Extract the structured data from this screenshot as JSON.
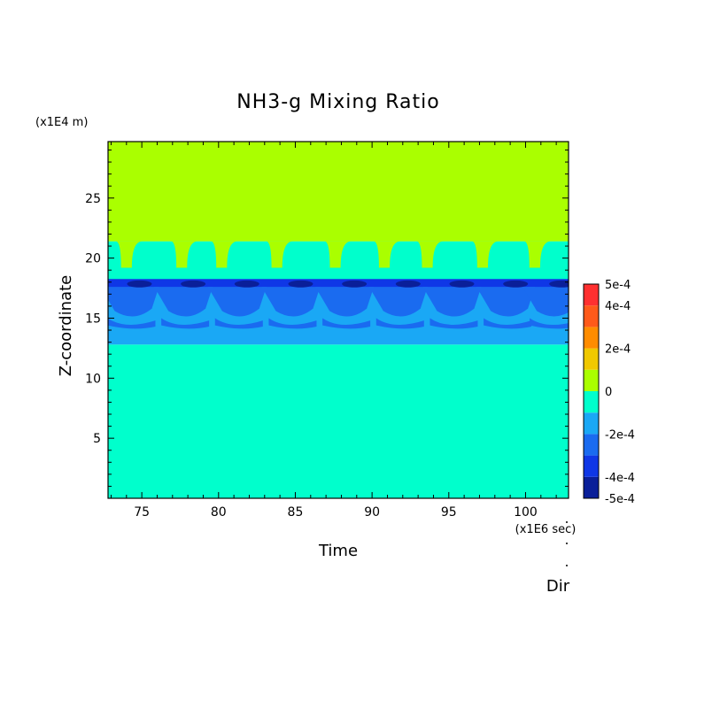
{
  "chart_data": {
    "type": "heatmap",
    "title": "NH3-g Mixing Ratio",
    "xlabel": "Time",
    "ylabel": "Z-coordinate",
    "x_unit": "(x1E6 sec)",
    "y_unit": "(x1E4 m)",
    "footer_label": "Dir",
    "xlim": [
      72.8,
      102.8
    ],
    "ylim": [
      0,
      29.7
    ],
    "x_ticks": [
      75,
      80,
      85,
      90,
      95,
      100
    ],
    "y_ticks": [
      5,
      10,
      15,
      20,
      25
    ],
    "colorbar": {
      "levels": [
        -0.0005,
        -0.0004,
        -0.0003,
        -0.0002,
        -0.0001,
        0,
        0.0001,
        0.0002,
        0.0003,
        0.0004,
        0.0005
      ],
      "colors": [
        "#0a1f99",
        "#0f37e6",
        "#1a6bf0",
        "#1aa8f5",
        "#00ffcc",
        "#aaff00",
        "#f0c800",
        "#ff8c00",
        "#ff5a1a",
        "#ff3030"
      ],
      "tick_labels": [
        {
          "label": "5e-4",
          "value": 0.0005
        },
        {
          "label": "4e-4",
          "value": 0.0004
        },
        {
          "label": "2e-4",
          "value": 0.0002
        },
        {
          "label": "0",
          "value": 0
        },
        {
          "label": "-2e-4",
          "value": -0.0002
        },
        {
          "label": "-4e-4",
          "value": -0.0004
        },
        {
          "label": "-5e-4",
          "value": -0.0005
        }
      ]
    },
    "bands": [
      {
        "z_min": 0,
        "z_max": 12.8,
        "value": -5e-05
      },
      {
        "z_min": 12.8,
        "z_max": 18.2,
        "value": -0.00015
      },
      {
        "z_min": 17.5,
        "z_max": 18.2,
        "value": -0.00035
      },
      {
        "z_min": 18.2,
        "z_max": 21.4,
        "value": -5e-05
      },
      {
        "z_min": 21.4,
        "z_max": 29.7,
        "value": 5e-05
      }
    ],
    "cloud_top_dips_x": [
      74.0,
      77.6,
      80.2,
      83.8,
      87.6,
      90.8,
      93.6,
      97.2,
      100.6
    ],
    "deep_cells_x": [
      74.5,
      78,
      81.5,
      85,
      88.5,
      92,
      95.5,
      99,
      102
    ]
  }
}
